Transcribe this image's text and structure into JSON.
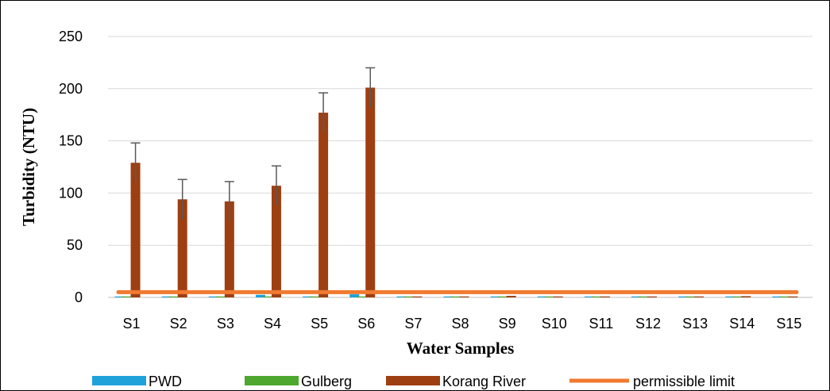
{
  "chart_data": {
    "type": "bar",
    "title": "",
    "xlabel": "Water Samples",
    "ylabel": "Turbidity (NTU)",
    "ylim": [
      0,
      250
    ],
    "yticks": [
      0,
      50,
      100,
      150,
      200,
      250
    ],
    "grid": true,
    "legend_position": "bottom",
    "categories": [
      "S1",
      "S2",
      "S3",
      "S4",
      "S5",
      "S6",
      "S7",
      "S8",
      "S9",
      "S10",
      "S11",
      "S12",
      "S13",
      "S14",
      "S15"
    ],
    "series": [
      {
        "name": "PWD",
        "color": "#1FA2DA",
        "values": [
          0.5,
          0.5,
          0.5,
          2.5,
          0.5,
          3.0,
          0.5,
          0.5,
          0.5,
          0.5,
          0.5,
          0.5,
          0.5,
          0.5,
          0.5
        ]
      },
      {
        "name": "Gulberg",
        "color": "#4EA72E",
        "values": [
          0.3,
          0.3,
          0.3,
          0.3,
          0.3,
          0.3,
          0.3,
          0.3,
          0.3,
          0.3,
          0.3,
          0.3,
          0.3,
          0.3,
          0.3
        ]
      },
      {
        "name": "Korang River",
        "color": "#9E3F12",
        "values": [
          129,
          94,
          92,
          107,
          177,
          201,
          0.5,
          0.5,
          1.5,
          0.5,
          0.8,
          0.8,
          0.5,
          1.2,
          0.5
        ],
        "errors": [
          19,
          19,
          19,
          19,
          19,
          19,
          0,
          0,
          0,
          0,
          0,
          0,
          0,
          0,
          0
        ]
      },
      {
        "name": "permissible limit",
        "color": "#F07A30",
        "type": "line",
        "values": [
          5,
          5,
          5,
          5,
          5,
          5,
          5,
          5,
          5,
          5,
          5,
          5,
          5,
          5,
          5
        ]
      }
    ]
  }
}
